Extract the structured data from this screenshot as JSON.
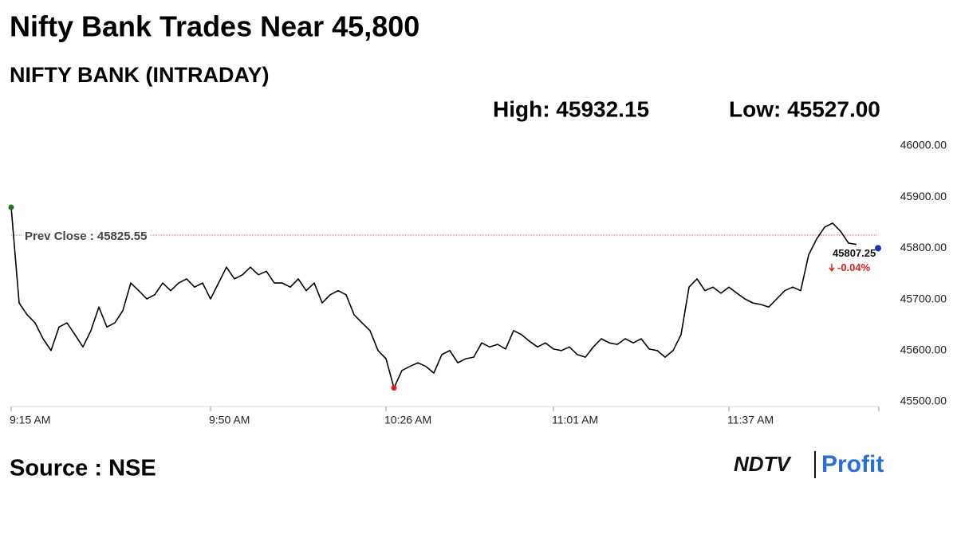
{
  "chart_data": {
    "type": "line",
    "title": "Nifty Bank Trades Near 45,800",
    "subtitle": "NIFTY BANK (INTRADAY)",
    "high_label": "High: 45932.15",
    "low_label": "Low: 45527.00",
    "source": "Source : NSE",
    "logo": [
      "NDTV",
      "Profit"
    ],
    "categories": [
      "9:15 AM",
      null,
      null,
      null,
      null,
      null,
      null,
      null,
      null,
      null,
      null,
      null,
      null,
      null,
      null,
      null,
      null,
      null,
      null,
      null,
      null,
      null,
      null,
      null,
      null,
      "9:50 AM",
      null,
      null,
      null,
      null,
      null,
      null,
      null,
      null,
      null,
      null,
      null,
      null,
      null,
      null,
      null,
      null,
      null,
      null,
      null,
      null,
      null,
      "10:26 AM",
      null,
      null,
      null,
      null,
      null,
      null,
      null,
      null,
      null,
      null,
      null,
      null,
      null,
      null,
      null,
      null,
      null,
      null,
      null,
      null,
      "11:01 AM",
      null,
      null,
      null,
      null,
      null,
      null,
      null,
      null,
      null,
      null,
      null,
      null,
      null,
      null,
      null,
      null,
      null,
      null,
      null,
      null,
      null,
      "11:37 AM",
      null,
      null,
      null,
      null,
      null,
      null,
      null,
      null,
      null,
      null,
      null,
      null,
      null,
      null,
      null,
      null,
      null,
      null
    ],
    "series": [
      {
        "name": "NIFTY BANK",
        "color": "#000000",
        "values": [
          45880,
          45693,
          45670,
          45654,
          45623,
          45600,
          45646,
          45654,
          45631,
          45607,
          45639,
          45685,
          45646,
          45654,
          45678,
          45732,
          45717,
          45701,
          45709,
          45732,
          45717,
          45732,
          45740,
          45724,
          45732,
          45701,
          45732,
          45763,
          45740,
          45748,
          45763,
          45748,
          45755,
          45732,
          45732,
          45724,
          45740,
          45717,
          45732,
          45693,
          45709,
          45717,
          45709,
          45670,
          45654,
          45639,
          45600,
          45584,
          45527,
          45561,
          45569,
          45576,
          45569,
          45556,
          45592,
          45600,
          45576,
          45584,
          45587,
          45615,
          45607,
          45612,
          45603,
          45639,
          45631,
          45618,
          45607,
          45615,
          45603,
          45600,
          45607,
          45592,
          45587,
          45607,
          45623,
          45615,
          45612,
          45623,
          45615,
          45623,
          45603,
          45600,
          45587,
          45600,
          45631,
          45724,
          45740,
          45717,
          45724,
          45712,
          45724,
          45712,
          45701,
          45693,
          45690,
          45685,
          45701,
          45717,
          45724,
          45717,
          45787,
          45818,
          45841,
          45849,
          45833,
          45810,
          45807.25,
          null,
          null
        ]
      }
    ],
    "reference_line": {
      "label": "Prev Close : 45825.55",
      "value": 45825.55,
      "color": "#c0392b"
    },
    "change": {
      "value": -0.04,
      "value_label": "-0.04%",
      "color": "#e0201b"
    },
    "start_marker_color": "#1a7a1a",
    "low_marker_color": "#e0201b",
    "ylim": [
      45500,
      46000
    ],
    "yticks": [
      {
        "value": 45500,
        "label": "45500.00"
      },
      {
        "value": 45600,
        "label": "45600.00"
      },
      {
        "value": 45700,
        "label": "45700.00"
      },
      {
        "value": 45800,
        "label": "45800.00"
      },
      {
        "value": 45900,
        "label": "45900.00"
      },
      {
        "value": 46000,
        "label": "46000.00"
      }
    ]
  }
}
